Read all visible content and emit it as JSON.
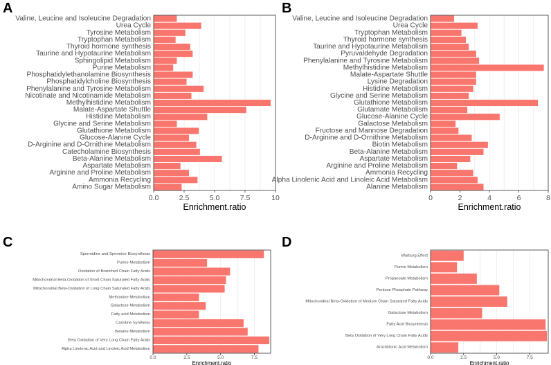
{
  "figure": {
    "panels": [
      "A",
      "B",
      "C",
      "D"
    ]
  },
  "chart_data": [
    {
      "panel": "A",
      "type": "bar",
      "orientation": "horizontal",
      "xlabel": "Enrichment.ratio",
      "xlim": [
        0,
        10
      ],
      "xticks": [
        0,
        2.5,
        5,
        7.5,
        10
      ],
      "xtick_labels": [
        "0.0",
        "2.5",
        "5.0",
        "7.5",
        "10"
      ],
      "categories": [
        "Valine, Leucine and Isoleucine Degradation",
        "Urea Cycle",
        "Tyrosine Metabolism",
        "Tryptophan Metabolism",
        "Thyroid hormone synthesis",
        "Taurine and Hypotaurine Metabolism",
        "Sphingolipid Metabolism",
        "Purine Metabolism",
        "Phosphatidylethanolamine Biosynthesis",
        "Phosphatidylcholine Biosynthesis",
        "Phenylalanine and Tyrosine Metabolism",
        "Nicotinate and Nicotinamide Metabolism",
        "Methylhistidine Metabolism",
        "Malate-Aspartate Shuttle",
        "Histidine Metabolism",
        "Glycine and Serine Metabolism",
        "Glutathione Metabolism",
        "Glucose-Alanine Cycle",
        "D-Arginine and D-Ornithine Metabolism",
        "Catecholamine Biosynthesis",
        "Beta-Alanine Metabolism",
        "Aspartate Metabolism",
        "Arginine and Proline Metabolism",
        "Ammonia Recycling",
        "Amino Sugar Metabolism"
      ],
      "values": [
        1.9,
        3.9,
        2.6,
        1.8,
        3.0,
        3.2,
        1.9,
        1.6,
        3.2,
        2.7,
        4.1,
        3.1,
        9.6,
        7.6,
        4.4,
        1.9,
        3.7,
        2.9,
        3.5,
        3.8,
        5.6,
        2.2,
        2.9,
        3.6,
        2.3
      ]
    },
    {
      "panel": "B",
      "type": "bar",
      "orientation": "horizontal",
      "xlabel": "Enrichment.ratio",
      "xlim": [
        0,
        8
      ],
      "xticks": [
        0,
        2,
        4,
        6,
        8
      ],
      "xtick_labels": [
        "0",
        "2",
        "4",
        "6",
        "8"
      ],
      "categories": [
        "Valine, Leucine and Isoleucine Degradation",
        "Urea Cycle",
        "Tryptophan Metabolism",
        "Thyroid hormone synthesis",
        "Taurine and Hypotaurine Metabolism",
        "Pyruvaldehyde Degradation",
        "Phenylalanine and Tyrosine Metabolism",
        "Methylhistidine Metabolism",
        "Malate-Aspartate Shuttle",
        "Lysine Degradation",
        "Histidine Metabolism",
        "Glycine and Serine Metabolism",
        "Glutathione Metabolism",
        "Glutamate Metabolism",
        "Glucose-Alanine Cycle",
        "Galactose Metabolism",
        "Fructose and Mannose Degradation",
        "D-Arginine and D-Ornithine Metabolism",
        "Biotin Metabolism",
        "Beta-Alanine Metabolism",
        "Aspartate Metabolism",
        "Arginine and Proline Metabolism",
        "Ammonia Recycling",
        "Alpha Linolenic Acid and Linoleic Acid Metabolism",
        "Alanine Metabolism"
      ],
      "values": [
        1.6,
        3.2,
        2.1,
        2.4,
        2.6,
        3.1,
        3.3,
        7.7,
        3.1,
        3.1,
        2.9,
        2.6,
        7.3,
        2.5,
        4.7,
        1.7,
        1.9,
        2.8,
        3.9,
        3.6,
        2.7,
        1.8,
        2.9,
        3.2,
        3.6
      ]
    },
    {
      "panel": "C",
      "type": "bar",
      "orientation": "horizontal",
      "xlabel": "Enrichment.ratio",
      "xlim": [
        0,
        8.7
      ],
      "xticks": [
        0,
        2.5,
        5,
        7.5
      ],
      "xtick_labels": [
        "0.0",
        "2.5",
        "5.0",
        "7.5"
      ],
      "categories": [
        "Spermidine and Spermine Biosynthesis",
        "Purine Metabolism",
        "Oxidation of Branched Chain Fatty Acids",
        "Mitochondrial Beta-Oxidation of Short Chain Saturated Fatty Acids",
        "Mitochondrial Beta-Oxidation of Long Chain Saturated Fatty Acids",
        "Methionine Metabolism",
        "Galactose Metabolism",
        "Fatty acid Metabolism",
        "Carnitine Synthesis",
        "Betaine Metabolism",
        "Beta Oxidation of Very Long Chain Fatty Acids",
        "Alpha Linolenic Acid and Linoleic Acid Metabolism"
      ],
      "values": [
        8.2,
        4.0,
        5.7,
        5.4,
        5.3,
        3.4,
        3.9,
        3.4,
        6.7,
        7.0,
        8.6,
        7.8
      ]
    },
    {
      "panel": "D",
      "type": "bar",
      "orientation": "horizontal",
      "xlabel": "Enrichment.ratio",
      "xlim": [
        0,
        8.9
      ],
      "xticks": [
        0,
        2.5,
        5,
        7.5
      ],
      "xtick_labels": [
        "0.0",
        "2.5",
        "5.0",
        "7.5"
      ],
      "categories": [
        "Warburg Effect",
        "Purine Metabolism",
        "Propanoate Metabolism",
        "Pentose Phosphate Pathway",
        "Mitochondrial Beta-Oxidation of Medium Chain Saturated Fatty Acids",
        "Galactose Metabolism",
        "Fatty Acid Biosynthesis",
        "Beta Oxidation of Very Long Chain Fatty Acids",
        "Arachidonic Acid Metabolism"
      ],
      "values": [
        2.5,
        2.0,
        3.5,
        5.2,
        5.8,
        3.9,
        8.7,
        8.8,
        2.1
      ]
    }
  ]
}
